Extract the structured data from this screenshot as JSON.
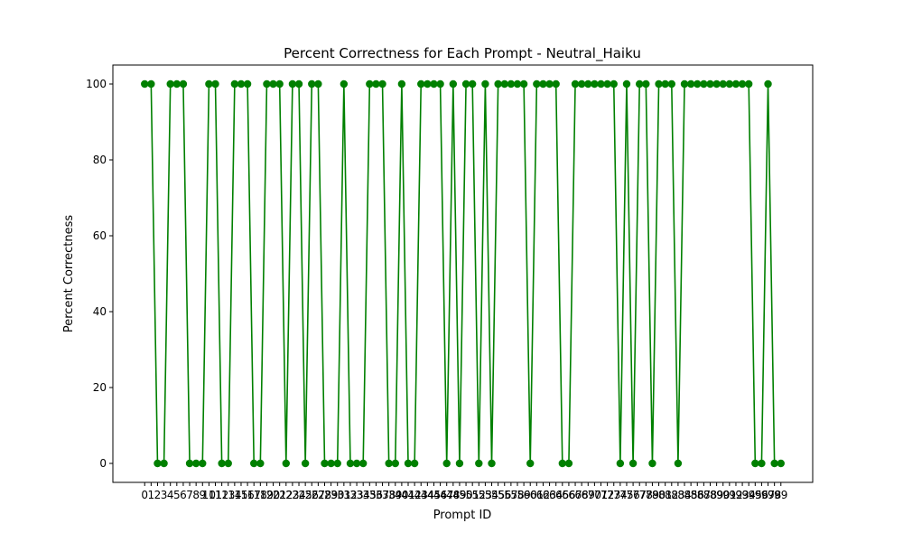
{
  "chart_data": {
    "type": "line",
    "title": "Percent Correctness for Each Prompt - Neutral_Haiku",
    "xlabel": "Prompt ID",
    "ylabel": "Percent Correctness",
    "x": [
      0,
      1,
      2,
      3,
      4,
      5,
      6,
      7,
      8,
      9,
      10,
      11,
      12,
      13,
      14,
      15,
      16,
      17,
      18,
      19,
      20,
      21,
      22,
      23,
      24,
      25,
      26,
      27,
      28,
      29,
      30,
      31,
      32,
      33,
      34,
      35,
      36,
      37,
      38,
      39,
      40,
      41,
      42,
      43,
      44,
      45,
      46,
      47,
      48,
      49,
      50,
      51,
      52,
      53,
      54,
      55,
      56,
      57,
      58,
      59,
      60,
      61,
      62,
      63,
      64,
      65,
      66,
      67,
      68,
      69,
      70,
      71,
      72,
      73,
      74,
      75,
      76,
      77,
      78,
      79,
      80,
      81,
      82,
      83,
      84,
      85,
      86,
      87,
      88,
      89,
      90,
      91,
      92,
      93,
      94,
      95,
      96,
      97,
      98,
      99
    ],
    "series": [
      {
        "name": "Neutral_Haiku",
        "color": "#008000",
        "values": [
          100,
          100,
          0,
          0,
          100,
          100,
          100,
          0,
          0,
          0,
          100,
          100,
          0,
          0,
          100,
          100,
          100,
          0,
          0,
          100,
          100,
          100,
          0,
          100,
          100,
          0,
          100,
          100,
          0,
          0,
          0,
          100,
          0,
          0,
          0,
          100,
          100,
          100,
          0,
          0,
          100,
          0,
          0,
          100,
          100,
          100,
          100,
          0,
          100,
          0,
          100,
          100,
          0,
          100,
          0,
          100,
          100,
          100,
          100,
          100,
          0,
          100,
          100,
          100,
          100,
          0,
          0,
          100,
          100,
          100,
          100,
          100,
          100,
          100,
          0,
          100,
          0,
          100,
          100,
          0,
          100,
          100,
          100,
          0,
          100,
          100,
          100,
          100,
          100,
          100,
          100,
          100,
          100,
          100,
          100,
          0,
          0,
          100,
          0,
          0
        ]
      }
    ],
    "xticks": [
      0,
      1,
      2,
      3,
      4,
      5,
      6,
      7,
      8,
      9,
      10,
      11,
      12,
      13,
      14,
      15,
      16,
      17,
      18,
      19,
      20,
      21,
      22,
      23,
      24,
      25,
      26,
      27,
      28,
      29,
      30,
      31,
      32,
      33,
      34,
      35,
      36,
      37,
      38,
      39,
      40,
      41,
      42,
      43,
      44,
      45,
      46,
      47,
      48,
      49,
      50,
      51,
      52,
      53,
      54,
      55,
      56,
      57,
      58,
      59,
      60,
      61,
      62,
      63,
      64,
      65,
      66,
      67,
      68,
      69,
      70,
      71,
      72,
      73,
      74,
      75,
      76,
      77,
      78,
      79,
      80,
      81,
      82,
      83,
      84,
      85,
      86,
      87,
      88,
      89,
      90,
      91,
      92,
      93,
      94,
      95,
      96,
      97,
      98,
      99
    ],
    "yticks": [
      0,
      20,
      40,
      60,
      80,
      100
    ],
    "xlim": [
      -4.95,
      103.95
    ],
    "ylim": [
      -5,
      105
    ],
    "grid": false,
    "legend": null
  }
}
